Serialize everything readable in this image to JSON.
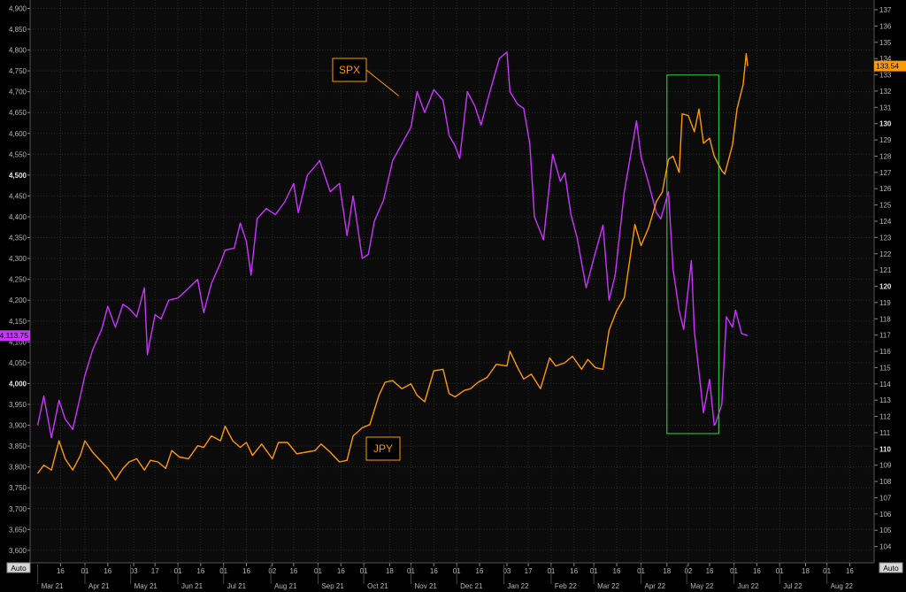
{
  "colors": {
    "background": "#000000",
    "plot_background": "#0b0b0b",
    "grid": "#2a2a2a",
    "spx": "#cc33ff",
    "jpy": "#ff9900",
    "highlight_box": "#33dd33",
    "axis_text": "#b8b8b8"
  },
  "chart_data": {
    "type": "line",
    "series": [
      {
        "name": "SPX",
        "axis": "left",
        "color": "#cc33ff",
        "last_value_label": "4,113.75",
        "x": [
          "2021-03-01",
          "2021-03-05",
          "2021-03-10",
          "2021-03-15",
          "2021-03-19",
          "2021-03-24",
          "2021-03-29",
          "2021-04-01",
          "2021-04-06",
          "2021-04-12",
          "2021-04-16",
          "2021-04-21",
          "2021-04-26",
          "2021-04-30",
          "2021-05-05",
          "2021-05-10",
          "2021-05-12",
          "2021-05-17",
          "2021-05-21",
          "2021-05-26",
          "2021-06-01",
          "2021-06-07",
          "2021-06-14",
          "2021-06-18",
          "2021-06-23",
          "2021-06-29",
          "2021-07-02",
          "2021-07-08",
          "2021-07-12",
          "2021-07-16",
          "2021-07-19",
          "2021-07-23",
          "2021-07-29",
          "2021-08-04",
          "2021-08-10",
          "2021-08-16",
          "2021-08-19",
          "2021-08-25",
          "2021-08-31",
          "2021-09-02",
          "2021-09-09",
          "2021-09-15",
          "2021-09-20",
          "2021-09-24",
          "2021-09-30",
          "2021-10-04",
          "2021-10-08",
          "2021-10-14",
          "2021-10-20",
          "2021-10-26",
          "2021-11-01",
          "2021-11-05",
          "2021-11-10",
          "2021-11-16",
          "2021-11-22",
          "2021-11-26",
          "2021-11-30",
          "2021-12-03",
          "2021-12-08",
          "2021-12-13",
          "2021-12-17",
          "2021-12-22",
          "2021-12-29",
          "2022-01-03",
          "2022-01-05",
          "2022-01-10",
          "2022-01-14",
          "2022-01-18",
          "2022-01-21",
          "2022-01-27",
          "2022-02-02",
          "2022-02-07",
          "2022-02-10",
          "2022-02-14",
          "2022-02-18",
          "2022-02-24",
          "2022-03-01",
          "2022-03-07",
          "2022-03-11",
          "2022-03-15",
          "2022-03-21",
          "2022-03-29",
          "2022-04-01",
          "2022-04-06",
          "2022-04-11",
          "2022-04-14",
          "2022-04-19",
          "2022-04-22",
          "2022-04-26",
          "2022-04-29",
          "2022-05-04",
          "2022-05-06",
          "2022-05-10",
          "2022-05-12",
          "2022-05-16",
          "2022-05-19",
          "2022-05-20",
          "2022-05-24",
          "2022-05-27",
          "2022-05-31",
          "2022-06-02",
          "2022-06-06",
          "2022-06-10"
        ],
        "values": [
          3900,
          3970,
          3870,
          3960,
          3915,
          3890,
          3970,
          4020,
          4080,
          4130,
          4185,
          4135,
          4190,
          4180,
          4160,
          4230,
          4070,
          4165,
          4155,
          4200,
          4205,
          4225,
          4250,
          4170,
          4240,
          4290,
          4320,
          4325,
          4385,
          4340,
          4260,
          4395,
          4420,
          4405,
          4435,
          4480,
          4410,
          4500,
          4525,
          4535,
          4460,
          4480,
          4355,
          4450,
          4300,
          4310,
          4390,
          4440,
          4535,
          4575,
          4615,
          4700,
          4650,
          4705,
          4680,
          4595,
          4570,
          4540,
          4700,
          4665,
          4620,
          4690,
          4780,
          4795,
          4700,
          4670,
          4660,
          4575,
          4400,
          4345,
          4550,
          4485,
          4505,
          4405,
          4350,
          4230,
          4300,
          4380,
          4200,
          4260,
          4460,
          4630,
          4545,
          4480,
          4410,
          4395,
          4460,
          4275,
          4175,
          4130,
          4295,
          4125,
          3995,
          3930,
          4010,
          3900,
          3905,
          3950,
          4160,
          4135,
          4176,
          4120,
          4115
        ]
      },
      {
        "name": "JPY",
        "axis": "right",
        "color": "#ff9900",
        "last_value_label": "133.54",
        "x": [
          "2021-03-01",
          "2021-03-05",
          "2021-03-10",
          "2021-03-15",
          "2021-03-19",
          "2021-03-24",
          "2021-03-29",
          "2021-04-01",
          "2021-04-06",
          "2021-04-12",
          "2021-04-16",
          "2021-04-21",
          "2021-04-26",
          "2021-04-30",
          "2021-05-05",
          "2021-05-10",
          "2021-05-14",
          "2021-05-19",
          "2021-05-24",
          "2021-05-28",
          "2021-06-02",
          "2021-06-08",
          "2021-06-14",
          "2021-06-18",
          "2021-06-23",
          "2021-06-29",
          "2021-07-02",
          "2021-07-07",
          "2021-07-12",
          "2021-07-16",
          "2021-07-20",
          "2021-07-26",
          "2021-08-02",
          "2021-08-06",
          "2021-08-12",
          "2021-08-18",
          "2021-08-24",
          "2021-08-30",
          "2021-09-03",
          "2021-09-09",
          "2021-09-15",
          "2021-09-20",
          "2021-09-24",
          "2021-09-30",
          "2021-10-05",
          "2021-10-11",
          "2021-10-15",
          "2021-10-20",
          "2021-10-26",
          "2021-11-01",
          "2021-11-05",
          "2021-11-10",
          "2021-11-16",
          "2021-11-22",
          "2021-11-26",
          "2021-11-30",
          "2021-12-06",
          "2021-12-10",
          "2021-12-15",
          "2021-12-21",
          "2021-12-27",
          "2022-01-03",
          "2022-01-05",
          "2022-01-10",
          "2022-01-14",
          "2022-01-19",
          "2022-01-25",
          "2022-01-31",
          "2022-02-04",
          "2022-02-10",
          "2022-02-15",
          "2022-02-21",
          "2022-02-25",
          "2022-03-02",
          "2022-03-07",
          "2022-03-11",
          "2022-03-16",
          "2022-03-21",
          "2022-03-28",
          "2022-04-01",
          "2022-04-06",
          "2022-04-11",
          "2022-04-15",
          "2022-04-19",
          "2022-04-22",
          "2022-04-26",
          "2022-04-28",
          "2022-05-02",
          "2022-05-06",
          "2022-05-09",
          "2022-05-12",
          "2022-05-16",
          "2022-05-19",
          "2022-05-24",
          "2022-05-26",
          "2022-05-31",
          "2022-06-03",
          "2022-06-07",
          "2022-06-09",
          "2022-06-10"
        ],
        "values": [
          108.5,
          109.0,
          108.7,
          110.5,
          109.4,
          108.7,
          109.6,
          110.5,
          109.8,
          109.2,
          108.8,
          108.1,
          108.8,
          109.2,
          109.4,
          108.7,
          109.3,
          109.2,
          108.8,
          109.9,
          109.5,
          109.4,
          110.2,
          110.1,
          110.8,
          110.5,
          111.4,
          110.5,
          110.1,
          110.4,
          109.6,
          110.3,
          109.4,
          110.4,
          110.4,
          109.7,
          109.8,
          109.9,
          110.3,
          109.8,
          109.2,
          109.3,
          110.8,
          111.3,
          111.5,
          113.3,
          114.1,
          114.2,
          113.7,
          114.0,
          113.3,
          112.9,
          114.8,
          114.9,
          113.4,
          113.2,
          113.6,
          113.7,
          114.1,
          114.4,
          115.2,
          115.1,
          116.0,
          115.0,
          114.3,
          114.6,
          113.7,
          115.6,
          115.1,
          115.3,
          115.7,
          114.9,
          115.5,
          115.0,
          114.9,
          117.3,
          118.5,
          119.3,
          123.8,
          122.5,
          123.6,
          125.2,
          125.8,
          127.8,
          128.0,
          127.0,
          130.6,
          130.5,
          129.5,
          130.9,
          128.8,
          129.1,
          128.0,
          127.1,
          126.9,
          128.7,
          130.9,
          132.4,
          134.3,
          133.54
        ]
      }
    ],
    "x_range": [
      "2021-02-24",
      "2022-09-01"
    ],
    "y_left": {
      "range": [
        3570,
        4920
      ],
      "ticks": [
        "3,600",
        "3,650",
        "3,700",
        "3,750",
        "3,800",
        "3,850",
        "3,900",
        "3,950",
        "4,000",
        "4,050",
        "4,100",
        "4,150",
        "4,200",
        "4,250",
        "4,300",
        "4,350",
        "4,400",
        "4,450",
        "4,500",
        "4,550",
        "4,600",
        "4,650",
        "4,700",
        "4,750",
        "4,800",
        "4,850",
        "4,900"
      ],
      "bold_ticks": [
        "4,000",
        "4,500"
      ],
      "button": "Auto"
    },
    "y_right": {
      "range": [
        103.0,
        137.6
      ],
      "ticks": [
        "104",
        "105",
        "106",
        "107",
        "108",
        "109",
        "110",
        "111",
        "112",
        "113",
        "114",
        "115",
        "116",
        "117",
        "118",
        "119",
        "120",
        "121",
        "122",
        "123",
        "124",
        "125",
        "126",
        "127",
        "128",
        "129",
        "130",
        "131",
        "132",
        "133",
        "134",
        "135",
        "136",
        "137"
      ],
      "bold_ticks": [
        "110",
        "120",
        "130"
      ],
      "button": "Auto"
    },
    "x_ticks": [
      {
        "date": "2021-03-16",
        "label": "16"
      },
      {
        "date": "2021-04-01",
        "label": "01"
      },
      {
        "date": "2021-04-16",
        "label": "16"
      },
      {
        "date": "2021-05-03",
        "label": "03"
      },
      {
        "date": "2021-05-17",
        "label": "17"
      },
      {
        "date": "2021-06-01",
        "label": "01"
      },
      {
        "date": "2021-06-16",
        "label": "16"
      },
      {
        "date": "2021-07-01",
        "label": "01"
      },
      {
        "date": "2021-07-16",
        "label": "16"
      },
      {
        "date": "2021-08-02",
        "label": "02"
      },
      {
        "date": "2021-08-16",
        "label": "16"
      },
      {
        "date": "2021-09-01",
        "label": "01"
      },
      {
        "date": "2021-09-16",
        "label": "16"
      },
      {
        "date": "2021-10-01",
        "label": "01"
      },
      {
        "date": "2021-10-18",
        "label": "18"
      },
      {
        "date": "2021-11-01",
        "label": "01"
      },
      {
        "date": "2021-11-16",
        "label": "16"
      },
      {
        "date": "2021-12-01",
        "label": "01"
      },
      {
        "date": "2021-12-16",
        "label": "16"
      },
      {
        "date": "2022-01-03",
        "label": "03"
      },
      {
        "date": "2022-01-17",
        "label": "17"
      },
      {
        "date": "2022-02-01",
        "label": "01"
      },
      {
        "date": "2022-02-16",
        "label": "16"
      },
      {
        "date": "2022-03-01",
        "label": "01"
      },
      {
        "date": "2022-03-16",
        "label": "16"
      },
      {
        "date": "2022-04-01",
        "label": "01"
      },
      {
        "date": "2022-04-18",
        "label": "18"
      },
      {
        "date": "2022-05-02",
        "label": "02"
      },
      {
        "date": "2022-05-16",
        "label": "16"
      },
      {
        "date": "2022-06-01",
        "label": "01"
      },
      {
        "date": "2022-06-16",
        "label": "16"
      },
      {
        "date": "2022-07-01",
        "label": "01"
      },
      {
        "date": "2022-07-18",
        "label": "18"
      },
      {
        "date": "2022-08-01",
        "label": "01"
      },
      {
        "date": "2022-08-16",
        "label": "16"
      }
    ],
    "month_labels": [
      {
        "date": "2021-03-01",
        "label": "Mar 21"
      },
      {
        "date": "2021-04-01",
        "label": "Apr 21"
      },
      {
        "date": "2021-05-01",
        "label": "May 21"
      },
      {
        "date": "2021-06-01",
        "label": "Jun 21"
      },
      {
        "date": "2021-07-01",
        "label": "Jul 21"
      },
      {
        "date": "2021-08-01",
        "label": "Aug 21"
      },
      {
        "date": "2021-09-01",
        "label": "Sep 21"
      },
      {
        "date": "2021-10-01",
        "label": "Oct 21"
      },
      {
        "date": "2021-11-01",
        "label": "Nov 21"
      },
      {
        "date": "2021-12-01",
        "label": "Dec 21"
      },
      {
        "date": "2022-01-01",
        "label": "Jan 22"
      },
      {
        "date": "2022-02-01",
        "label": "Feb 22"
      },
      {
        "date": "2022-03-01",
        "label": "Mar 22"
      },
      {
        "date": "2022-04-01",
        "label": "Apr 22"
      },
      {
        "date": "2022-05-01",
        "label": "May 22"
      },
      {
        "date": "2022-06-01",
        "label": "Jun 22"
      },
      {
        "date": "2022-07-01",
        "label": "Jul 22"
      },
      {
        "date": "2022-08-01",
        "label": "Aug 22"
      }
    ],
    "annotations": [
      {
        "text": "SPX",
        "color": "#ff9900",
        "points_to": {
          "date": "2021-10-24",
          "value": 4690,
          "axis": "left"
        }
      },
      {
        "text": "JPY",
        "color": "#ff9900"
      }
    ],
    "highlight_box": {
      "x": [
        "2022-04-18",
        "2022-05-22"
      ],
      "y_left": [
        3880,
        4740
      ]
    },
    "grid": true
  }
}
